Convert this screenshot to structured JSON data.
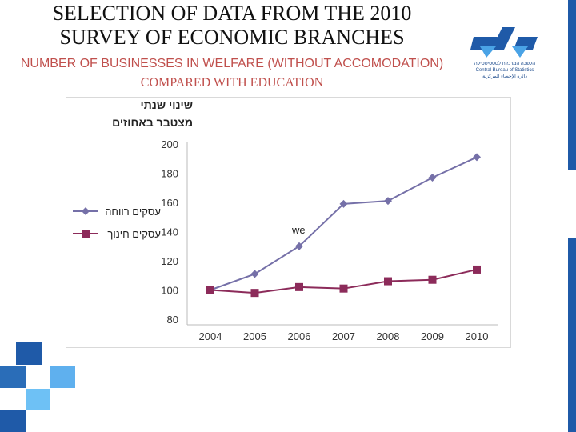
{
  "slide": {
    "title_line1": "SELECTION OF DATA FROM THE 2010",
    "title_line2": "SURVEY OF ECONOMIC BRANCHES",
    "subtitle_line1": "NUMBER OF BUSINESSES IN WELFARE (WITHOUT ACCOMODATION)",
    "subtitle_line2": "COMPARED WITH EDUCATION"
  },
  "logo": {
    "line1": "הלשכה המרכזית לסטטיסטיקה",
    "line2": "Central Bureau of Statistics",
    "line3": "دائرة الإحصاء المركزية"
  },
  "colors": {
    "welfare": "#7570a8",
    "education": "#8c2b5a",
    "title_red": "#c0504d",
    "brand_blue": "#1f5aa8",
    "light_blue": "#4aa3e6"
  },
  "chart_data": {
    "type": "line",
    "ylabel_line1": "שינוי שנתי",
    "ylabel_line2": "מצטבר באחוזים",
    "categories": [
      "2004",
      "2005",
      "2006",
      "2007",
      "2008",
      "2009",
      "2010"
    ],
    "ylim": [
      80,
      200
    ],
    "yticks": [
      80,
      100,
      120,
      140,
      160,
      180,
      200
    ],
    "series": [
      {
        "name": "עסקים רווחה",
        "values": [
          100,
          111,
          130,
          159,
          161,
          177,
          191
        ],
        "marker": "diamond"
      },
      {
        "name": "עסקים חינוך",
        "values": [
          100,
          98,
          102,
          101,
          106,
          107,
          114
        ],
        "marker": "square"
      }
    ],
    "annotation": "we",
    "legend_position": "left",
    "grid": false
  }
}
